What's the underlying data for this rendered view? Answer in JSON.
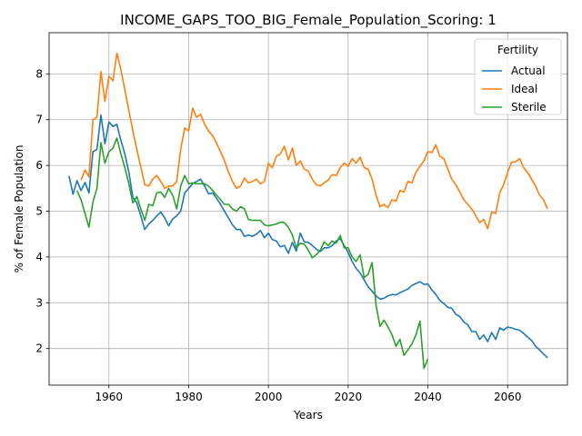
{
  "chart_data": {
    "type": "line",
    "title": "INCOME_GAPS_TOO_BIG_Female_Population_Scoring: 1",
    "xlabel": "Years",
    "ylabel": "% of Female Population",
    "xlim": [
      1945,
      2075
    ],
    "ylim": [
      1.2,
      8.9
    ],
    "xticks": [
      1960,
      1980,
      2000,
      2020,
      2040,
      2060
    ],
    "yticks": [
      2,
      3,
      4,
      5,
      6,
      7,
      8
    ],
    "grid": true,
    "legend": {
      "title": "Fertility",
      "position": "top-right"
    },
    "x": [
      1950,
      1951,
      1952,
      1953,
      1954,
      1955,
      1956,
      1957,
      1958,
      1959,
      1960,
      1961,
      1962,
      1963,
      1964,
      1965,
      1966,
      1967,
      1968,
      1969,
      1970,
      1971,
      1972,
      1973,
      1974,
      1975,
      1976,
      1977,
      1978,
      1979,
      1980,
      1981,
      1982,
      1983,
      1984,
      1985,
      1986,
      1987,
      1988,
      1989,
      1990,
      1991,
      1992,
      1993,
      1994,
      1995,
      1996,
      1997,
      1998,
      1999,
      2000,
      2001,
      2002,
      2003,
      2004,
      2005,
      2006,
      2007,
      2008,
      2009,
      2010,
      2011,
      2012,
      2013,
      2014,
      2015,
      2016,
      2017,
      2018,
      2019,
      2020,
      2021,
      2022,
      2023,
      2024,
      2025,
      2026,
      2027,
      2028,
      2029,
      2030,
      2031,
      2032,
      2033,
      2034,
      2035,
      2036,
      2037,
      2038,
      2039,
      2040,
      2041,
      2042,
      2043,
      2044,
      2045,
      2046,
      2047,
      2048,
      2049,
      2050,
      2051,
      2052,
      2053,
      2054,
      2055,
      2056,
      2057,
      2058,
      2059,
      2060,
      2061,
      2062,
      2063,
      2064,
      2065,
      2066,
      2067,
      2068,
      2069,
      2070
    ],
    "series": [
      {
        "name": "Actual",
        "color": "#1f77b4",
        "values": [
          5.77,
          5.37,
          5.67,
          5.45,
          5.63,
          5.4,
          6.3,
          6.35,
          7.1,
          6.47,
          6.95,
          6.85,
          6.9,
          6.55,
          6.25,
          5.85,
          5.3,
          5.18,
          4.9,
          4.6,
          4.72,
          4.8,
          4.9,
          4.98,
          4.85,
          4.68,
          4.83,
          4.9,
          5.0,
          5.4,
          5.5,
          5.6,
          5.65,
          5.7,
          5.55,
          5.38,
          5.4,
          5.28,
          5.15,
          5.0,
          4.85,
          4.7,
          4.6,
          4.6,
          4.45,
          4.48,
          4.45,
          4.5,
          4.58,
          4.42,
          4.52,
          4.38,
          4.35,
          4.22,
          4.25,
          4.08,
          4.32,
          4.13,
          4.52,
          4.33,
          4.32,
          4.25,
          4.17,
          4.12,
          4.2,
          4.2,
          4.25,
          4.35,
          4.4,
          4.25,
          4.1,
          3.9,
          3.75,
          3.65,
          3.5,
          3.35,
          3.25,
          3.15,
          3.08,
          3.1,
          3.15,
          3.18,
          3.17,
          3.22,
          3.26,
          3.3,
          3.38,
          3.42,
          3.46,
          3.4,
          3.41,
          3.28,
          3.18,
          3.05,
          2.98,
          2.9,
          2.88,
          2.75,
          2.7,
          2.58,
          2.52,
          2.37,
          2.37,
          2.2,
          2.3,
          2.15,
          2.35,
          2.2,
          2.45,
          2.4,
          2.47,
          2.45,
          2.42,
          2.4,
          2.33,
          2.25,
          2.18,
          2.05,
          1.97,
          1.88,
          1.8
        ]
      },
      {
        "name": "Ideal",
        "color": "#ff7f0e",
        "values": [
          null,
          null,
          null,
          5.68,
          5.9,
          5.75,
          7.0,
          7.05,
          8.05,
          7.4,
          7.95,
          7.85,
          8.45,
          8.1,
          7.65,
          7.2,
          6.75,
          6.35,
          5.97,
          5.58,
          5.55,
          5.7,
          5.78,
          5.65,
          5.5,
          5.55,
          5.55,
          5.65,
          6.35,
          6.82,
          6.75,
          7.25,
          7.05,
          7.12,
          6.9,
          6.75,
          6.65,
          6.48,
          6.3,
          6.1,
          5.85,
          5.65,
          5.5,
          5.55,
          5.72,
          5.62,
          5.65,
          5.7,
          5.6,
          5.65,
          6.05,
          5.95,
          6.2,
          6.25,
          6.42,
          6.12,
          6.38,
          6.0,
          6.1,
          5.92,
          5.88,
          5.7,
          5.58,
          5.55,
          5.62,
          5.68,
          5.8,
          5.78,
          5.95,
          6.05,
          5.98,
          6.15,
          6.05,
          6.18,
          5.95,
          5.92,
          5.7,
          5.35,
          5.1,
          5.15,
          5.08,
          5.25,
          5.22,
          5.45,
          5.42,
          5.65,
          5.62,
          5.85,
          5.98,
          6.1,
          6.3,
          6.28,
          6.45,
          6.2,
          6.15,
          5.92,
          5.7,
          5.58,
          5.42,
          5.25,
          5.15,
          5.05,
          4.9,
          4.75,
          4.82,
          4.62,
          4.98,
          4.95,
          5.4,
          5.58,
          5.85,
          6.07,
          6.08,
          6.15,
          5.95,
          5.85,
          5.7,
          5.55,
          5.35,
          5.25,
          5.05
        ]
      },
      {
        "name": "Sterile",
        "color": "#2ca02c",
        "values": [
          null,
          null,
          5.45,
          5.25,
          4.95,
          4.65,
          5.2,
          5.5,
          6.5,
          6.05,
          6.3,
          6.38,
          6.6,
          6.25,
          5.95,
          5.6,
          5.18,
          5.32,
          5.05,
          4.8,
          5.15,
          5.12,
          5.4,
          5.42,
          5.3,
          5.5,
          5.35,
          5.05,
          5.55,
          5.78,
          5.6,
          5.62,
          5.6,
          5.6,
          5.6,
          5.55,
          5.45,
          5.35,
          5.25,
          5.15,
          5.15,
          5.05,
          5.0,
          5.1,
          5.05,
          4.82,
          4.8,
          4.8,
          4.8,
          4.7,
          4.68,
          4.7,
          4.72,
          4.76,
          4.75,
          4.65,
          4.48,
          4.2,
          4.3,
          4.28,
          4.15,
          3.98,
          4.05,
          4.15,
          4.33,
          4.25,
          4.35,
          4.3,
          4.47,
          4.2,
          4.2,
          4.0,
          3.9,
          4.05,
          3.55,
          3.62,
          3.88,
          2.95,
          2.48,
          2.62,
          2.47,
          2.3,
          2.05,
          2.2,
          1.85,
          1.97,
          2.1,
          2.3,
          2.6,
          1.57,
          1.77,
          null,
          null,
          null,
          null,
          null,
          null,
          null,
          null,
          null,
          null,
          null,
          null,
          null,
          null,
          null,
          null,
          null,
          null,
          null,
          null,
          null,
          null,
          null,
          null,
          null,
          null,
          null,
          null,
          null,
          null
        ]
      }
    ]
  }
}
